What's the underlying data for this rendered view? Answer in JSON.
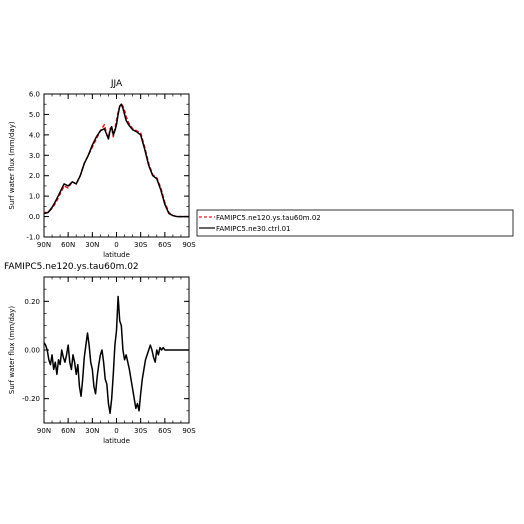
{
  "chart_data": [
    {
      "type": "line",
      "title": "JJA",
      "xlabel": "latitude",
      "ylabel": "Surf water flux (mm/day)",
      "xlim": [
        90,
        -90
      ],
      "ylim": [
        -1.0,
        6.0
      ],
      "xticks": [
        90,
        60,
        30,
        0,
        -30,
        -60,
        -90
      ],
      "xtick_labels": [
        "90N",
        "60N",
        "30N",
        "0",
        "30S",
        "60S",
        "90S"
      ],
      "yticks": [
        -1,
        0,
        1,
        2,
        3,
        4,
        5,
        6
      ],
      "ytick_labels": [
        "-1.0",
        "0.0",
        "1.0",
        "2.0",
        "3.0",
        "4.0",
        "5.0",
        "6.0"
      ],
      "legend_position": "right",
      "series": [
        {
          "name": "FAMIPC5.ne120.ys.tau60m.02",
          "color": "#e41a1c",
          "dash": "dashed",
          "x": [
            90,
            85,
            80,
            75,
            70,
            65,
            60,
            55,
            50,
            45,
            40,
            35,
            30,
            25,
            20,
            15,
            12,
            10,
            8,
            6,
            4,
            2,
            0,
            -2,
            -4,
            -6,
            -8,
            -10,
            -12,
            -15,
            -20,
            -25,
            -30,
            -35,
            -40,
            -45,
            -50,
            -55,
            -60,
            -65,
            -70,
            -75,
            -80,
            -85,
            -90
          ],
          "y": [
            0.2,
            0.2,
            0.4,
            0.7,
            1.1,
            1.5,
            1.4,
            1.7,
            1.6,
            2.0,
            2.6,
            3.0,
            3.4,
            3.8,
            4.2,
            4.5,
            4.0,
            3.9,
            4.3,
            4.4,
            3.9,
            4.3,
            4.7,
            5.1,
            5.4,
            5.5,
            5.4,
            5.2,
            4.9,
            4.6,
            4.3,
            4.2,
            4.1,
            3.4,
            2.6,
            2.05,
            1.9,
            1.4,
            0.7,
            0.2,
            0.05,
            0.0,
            0.0,
            0.0,
            0.0
          ]
        },
        {
          "name": "FAMIPC5.ne30.ctrl.01",
          "color": "#000000",
          "dash": "solid",
          "x": [
            90,
            85,
            80,
            75,
            70,
            65,
            60,
            55,
            50,
            45,
            40,
            35,
            30,
            25,
            20,
            15,
            12,
            10,
            8,
            6,
            4,
            2,
            0,
            -2,
            -4,
            -6,
            -8,
            -10,
            -12,
            -15,
            -20,
            -25,
            -30,
            -35,
            -40,
            -45,
            -50,
            -55,
            -60,
            -65,
            -70,
            -75,
            -80,
            -85,
            -90
          ],
          "y": [
            0.15,
            0.2,
            0.45,
            0.8,
            1.2,
            1.6,
            1.5,
            1.7,
            1.6,
            2.0,
            2.6,
            3.0,
            3.5,
            3.9,
            4.2,
            4.3,
            4.0,
            3.8,
            4.2,
            4.4,
            4.0,
            4.2,
            4.5,
            5.0,
            5.4,
            5.5,
            5.3,
            5.0,
            4.7,
            4.5,
            4.25,
            4.15,
            4.0,
            3.3,
            2.5,
            2.0,
            1.85,
            1.3,
            0.6,
            0.15,
            0.05,
            0.0,
            0.0,
            0.0,
            0.0
          ]
        }
      ]
    },
    {
      "type": "line",
      "title": "FAMIPC5.ne120.ys.tau60m.02",
      "xlabel": "latitude",
      "ylabel": "Surf water flux (mm/day)",
      "xlim": [
        90,
        -90
      ],
      "ylim": [
        -0.3,
        0.3
      ],
      "xticks": [
        90,
        60,
        30,
        0,
        -30,
        -60,
        -90
      ],
      "xtick_labels": [
        "90N",
        "60N",
        "30N",
        "0",
        "30S",
        "60S",
        "90S"
      ],
      "yticks": [
        -0.2,
        0.0,
        0.2
      ],
      "ytick_labels": [
        "-0.20",
        "0.00",
        "0.20"
      ],
      "series": [
        {
          "color": "#000000",
          "x": [
            90,
            88,
            86,
            84,
            82,
            80,
            78,
            76,
            74,
            72,
            70,
            68,
            66,
            64,
            62,
            60,
            58,
            56,
            54,
            52,
            50,
            48,
            46,
            44,
            42,
            40,
            38,
            36,
            34,
            32,
            30,
            28,
            26,
            24,
            22,
            20,
            18,
            16,
            14,
            12,
            10,
            8,
            6,
            4,
            2,
            0,
            -2,
            -4,
            -6,
            -8,
            -10,
            -12,
            -14,
            -16,
            -18,
            -20,
            -22,
            -24,
            -26,
            -28,
            -30,
            -32,
            -34,
            -36,
            -38,
            -40,
            -42,
            -44,
            -46,
            -48,
            -50,
            -52,
            -54,
            -56,
            -58,
            -60,
            -62,
            -64,
            -66,
            -68,
            -70,
            -72,
            -74,
            -76,
            -78,
            -80,
            -82,
            -84,
            -86,
            -88,
            -90
          ],
          "y": [
            0.03,
            0.02,
            0.0,
            -0.04,
            -0.06,
            -0.02,
            -0.08,
            -0.05,
            -0.1,
            -0.04,
            -0.06,
            0.0,
            -0.03,
            -0.05,
            -0.02,
            0.02,
            -0.05,
            -0.08,
            -0.02,
            -0.05,
            -0.1,
            -0.06,
            -0.15,
            -0.19,
            -0.12,
            -0.03,
            0.02,
            0.07,
            0.02,
            -0.05,
            -0.08,
            -0.15,
            -0.18,
            -0.11,
            -0.06,
            -0.02,
            0.0,
            -0.05,
            -0.12,
            -0.14,
            -0.22,
            -0.26,
            -0.2,
            -0.1,
            0.02,
            0.08,
            0.22,
            0.12,
            0.1,
            0.0,
            -0.04,
            -0.02,
            -0.05,
            -0.08,
            -0.12,
            -0.16,
            -0.2,
            -0.24,
            -0.22,
            -0.25,
            -0.18,
            -0.12,
            -0.08,
            -0.04,
            -0.02,
            0.0,
            0.02,
            0.0,
            -0.03,
            -0.05,
            0.0,
            -0.02,
            0.01,
            0.0,
            0.01,
            0.0,
            0.0,
            0.0,
            0.0,
            0.0,
            0.0,
            0.0,
            0.0,
            0.0,
            0.0,
            0.0,
            0.0,
            0.0,
            0.0,
            0.0,
            0.0
          ]
        }
      ]
    }
  ]
}
